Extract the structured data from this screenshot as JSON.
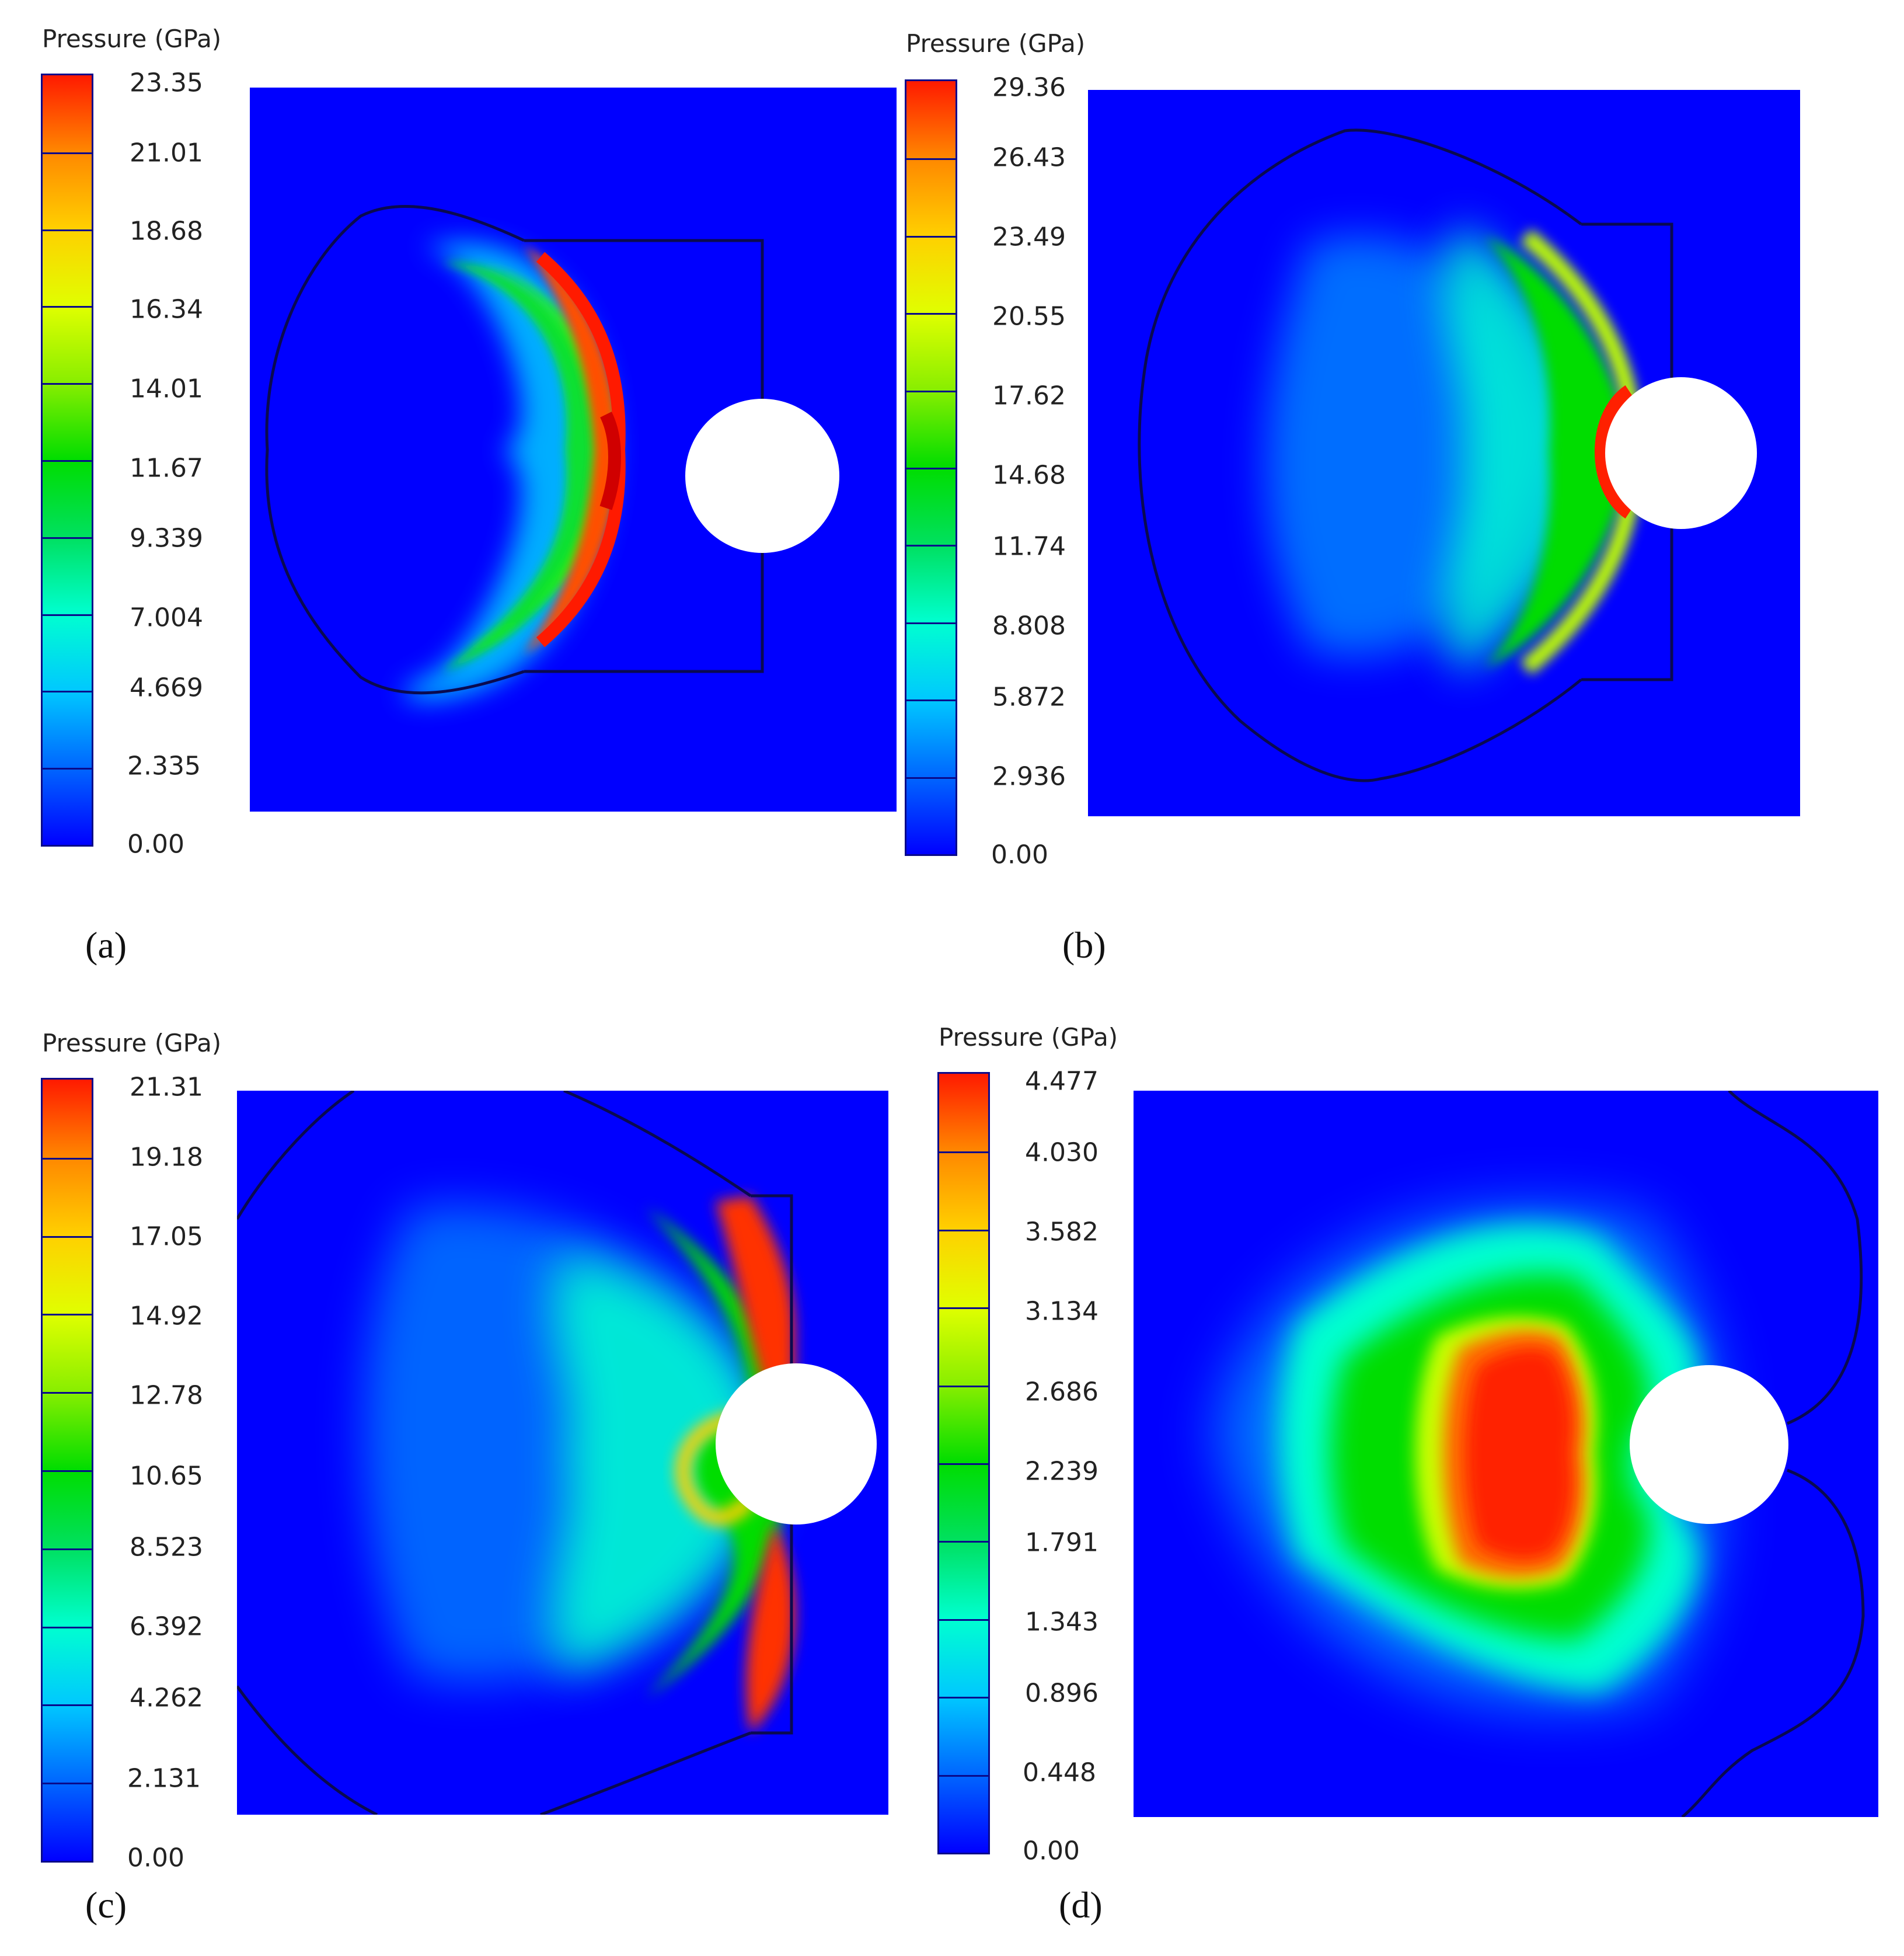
{
  "panels": [
    {
      "id": "a",
      "caption": "(a)",
      "colorbar_title": "Pressure (GPa)",
      "ticks": [
        "23.35",
        "21.01",
        "18.68",
        "16.34",
        "14.01",
        "11.67",
        "9.339",
        "7.004",
        "4.669",
        "2.335",
        "0.00"
      ]
    },
    {
      "id": "b",
      "caption": "(b)",
      "colorbar_title": "Pressure (GPa)",
      "ticks": [
        "29.36",
        "26.43",
        "23.49",
        "20.55",
        "17.62",
        "14.68",
        "11.74",
        "8.808",
        "5.872",
        "2.936",
        "0.00"
      ]
    },
    {
      "id": "c",
      "caption": "(c)",
      "colorbar_title": "Pressure (GPa)",
      "ticks": [
        "21.31",
        "19.18",
        "17.05",
        "14.92",
        "12.78",
        "10.65",
        "8.523",
        "6.392",
        "4.262",
        "2.131",
        "0.00"
      ]
    },
    {
      "id": "d",
      "caption": "(d)",
      "colorbar_title": "Pressure (GPa)",
      "ticks": [
        "4.477",
        "4.030",
        "3.582",
        "3.134",
        "2.686",
        "2.239",
        "1.791",
        "1.343",
        "0.896",
        "0.448",
        "0.00"
      ]
    }
  ],
  "colors": {
    "background": "#0000ff",
    "low": "#0000ff",
    "mid": "#00dd00",
    "high": "#ff1a00",
    "outline": "#0a0a50",
    "hole": "#ffffff"
  }
}
